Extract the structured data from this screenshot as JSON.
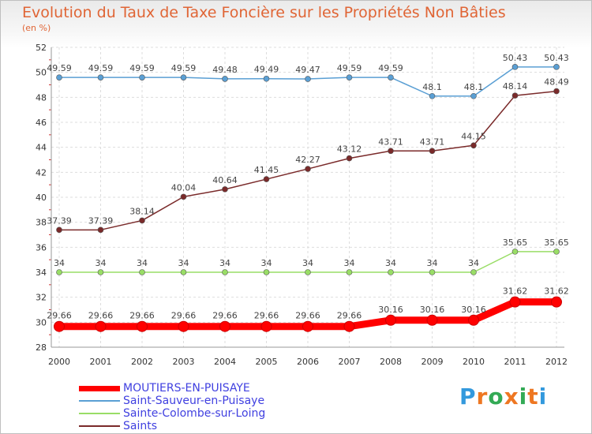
{
  "chart_data": {
    "type": "line",
    "title": "Evolution du Taux de Taxe Foncière sur les Propriétés Non Bâties",
    "subtitle": "(en %)",
    "x": [
      "2000",
      "2001",
      "2002",
      "2003",
      "2004",
      "2005",
      "2006",
      "2007",
      "2008",
      "2009",
      "2010",
      "2011",
      "2012"
    ],
    "ylim": [
      28,
      52
    ],
    "yticks": [
      "28",
      "30",
      "32",
      "34",
      "36",
      "38",
      "40",
      "42",
      "44",
      "46",
      "48",
      "50",
      "52"
    ],
    "grid": true,
    "legend_position": "bottom-left",
    "series": [
      {
        "name": "MOUTIERS-EN-PUISAYE",
        "color": "#ff0000",
        "values": [
          29.66,
          29.66,
          29.66,
          29.66,
          29.66,
          29.66,
          29.66,
          29.66,
          30.16,
          30.16,
          30.16,
          31.62,
          31.62
        ],
        "labels": [
          "29.66",
          "29.66",
          "29.66",
          "29.66",
          "29.66",
          "29.66",
          "29.66",
          "29.66",
          "30.16",
          "30.16",
          "30.16",
          "31.62",
          "31.62"
        ]
      },
      {
        "name": "Saint-Sauveur-en-Puisaye",
        "color": "#5a9fd4",
        "values": [
          49.59,
          49.59,
          49.59,
          49.59,
          49.48,
          49.49,
          49.47,
          49.59,
          49.59,
          48.1,
          48.1,
          50.43,
          50.43
        ],
        "labels": [
          "49.59",
          "49.59",
          "49.59",
          "49.59",
          "49.48",
          "49.49",
          "49.47",
          "49.59",
          "49.59",
          "48.1",
          "48.1",
          "50.43",
          "50.43"
        ]
      },
      {
        "name": "Sainte-Colombe-sur-Loing",
        "color": "#99dd66",
        "values": [
          34,
          34,
          34,
          34,
          34,
          34,
          34,
          34,
          34,
          34,
          34,
          35.65,
          35.65
        ],
        "labels": [
          "34",
          "34",
          "34",
          "34",
          "34",
          "34",
          "34",
          "34",
          "34",
          "34",
          "34",
          "35.65",
          "35.65"
        ]
      },
      {
        "name": "Saints",
        "color": "#7a2a2a",
        "values": [
          37.39,
          37.39,
          38.14,
          40.04,
          40.64,
          41.45,
          42.27,
          43.12,
          43.71,
          43.71,
          44.15,
          48.14,
          48.49
        ],
        "labels": [
          "37.39",
          "37.39",
          "38.14",
          "40.04",
          "40.64",
          "41.45",
          "42.27",
          "43.12",
          "43.71",
          "43.71",
          "44.15",
          "48.14",
          "48.49"
        ]
      }
    ]
  },
  "logo": {
    "letters": [
      "P",
      "r",
      "o",
      "x",
      "i",
      "t",
      "i"
    ],
    "colors": [
      "#3399dd",
      "#ee7722",
      "#33aa55",
      "#ee7722",
      "#33aa55",
      "#ee7722",
      "#3399dd"
    ]
  }
}
